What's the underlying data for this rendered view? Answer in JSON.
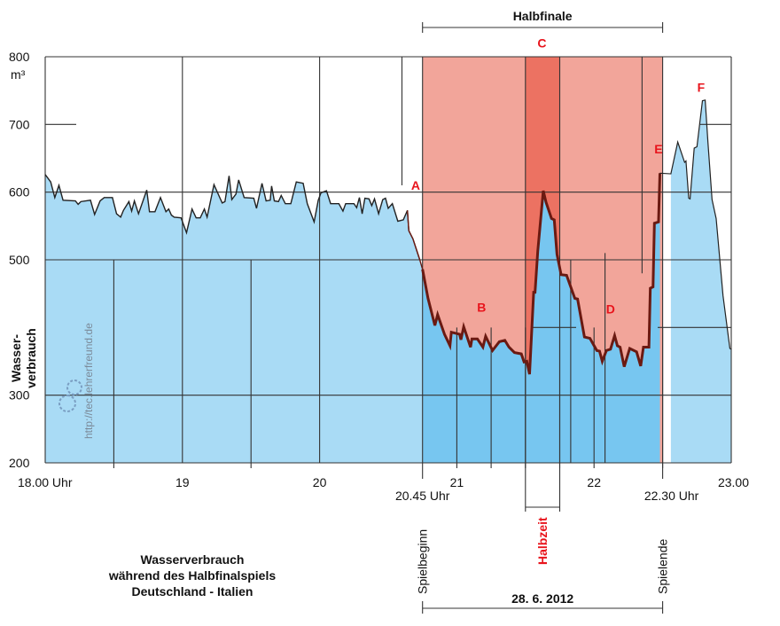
{
  "chart_data": {
    "type": "area",
    "title": [
      "Wasserverbrauch",
      "während des Halbfinalspiels",
      "Deutschland - Italien"
    ],
    "ylabel": [
      "Wasser-",
      "verbrauch"
    ],
    "yunit": "m³",
    "ylim": [
      200,
      800
    ],
    "xlim": [
      18,
      23
    ],
    "yticks": [
      200,
      300,
      500,
      600,
      700,
      800
    ],
    "xticks": [
      {
        "x": 18,
        "label": "18.00 Uhr"
      },
      {
        "x": 19,
        "label": "19"
      },
      {
        "x": 20,
        "label": "20"
      },
      {
        "x": 21,
        "label": "21"
      },
      {
        "x": 22,
        "label": "22"
      },
      {
        "x": 23,
        "label": "23.00"
      }
    ],
    "extra_xlabels": [
      {
        "x": 20.75,
        "label": "20.45 Uhr"
      },
      {
        "x": 22.5,
        "label": "22.30 Uhr"
      }
    ],
    "game": {
      "start": 20.75,
      "end": 22.5,
      "label": "Halbfinale",
      "start_label": "Spielbeginn",
      "end_label": "Spielende",
      "date": "28. 6. 2012"
    },
    "halftime": {
      "start": 21.5,
      "end": 21.75,
      "label": "Halbzeit"
    },
    "annotations": [
      {
        "label": "A",
        "x": 20.7,
        "y": 610
      },
      {
        "label": "B",
        "x": 21.18,
        "y": 430
      },
      {
        "label": "C",
        "x": 21.62,
        "y": 820
      },
      {
        "label": "D",
        "x": 22.12,
        "y": 427
      },
      {
        "label": "E",
        "x": 22.47,
        "y": 664
      },
      {
        "label": "F",
        "x": 22.78,
        "y": 755
      }
    ],
    "watermark": "http://tec.lehrerfreund.de",
    "colors": {
      "area_outside": "#a9dbf5",
      "area_game": "#77c6f0",
      "game_band": "#f2a59a",
      "halftime_band": "#ec7262",
      "line": "#222222",
      "game_line": "#6b1a12",
      "annotation": "#e8141c"
    },
    "series": [
      {
        "name": "Wasserverbrauch (m³)",
        "points": [
          [
            18.0,
            626
          ],
          [
            18.04,
            615
          ],
          [
            18.07,
            592
          ],
          [
            18.1,
            610
          ],
          [
            18.13,
            588
          ],
          [
            18.22,
            587
          ],
          [
            18.24,
            582
          ],
          [
            18.26,
            586
          ],
          [
            18.33,
            588
          ],
          [
            18.36,
            567
          ],
          [
            18.4,
            587
          ],
          [
            18.43,
            592
          ],
          [
            18.49,
            592
          ],
          [
            18.52,
            568
          ],
          [
            18.55,
            563
          ],
          [
            18.57,
            573
          ],
          [
            18.61,
            586
          ],
          [
            18.63,
            572
          ],
          [
            18.65,
            587
          ],
          [
            18.68,
            568
          ],
          [
            18.74,
            603
          ],
          [
            18.76,
            571
          ],
          [
            18.8,
            571
          ],
          [
            18.84,
            592
          ],
          [
            18.88,
            571
          ],
          [
            18.9,
            575
          ],
          [
            18.92,
            566
          ],
          [
            18.94,
            563
          ],
          [
            18.99,
            562
          ],
          [
            19.03,
            540
          ],
          [
            19.07,
            575
          ],
          [
            19.1,
            562
          ],
          [
            19.13,
            562
          ],
          [
            19.16,
            575
          ],
          [
            19.18,
            563
          ],
          [
            19.23,
            611
          ],
          [
            19.29,
            584
          ],
          [
            19.31,
            586
          ],
          [
            19.34,
            624
          ],
          [
            19.36,
            589
          ],
          [
            19.39,
            597
          ],
          [
            19.41,
            618
          ],
          [
            19.45,
            592
          ],
          [
            19.52,
            591
          ],
          [
            19.54,
            576
          ],
          [
            19.58,
            613
          ],
          [
            19.61,
            587
          ],
          [
            19.64,
            588
          ],
          [
            19.65,
            609
          ],
          [
            19.67,
            587
          ],
          [
            19.7,
            586
          ],
          [
            19.72,
            595
          ],
          [
            19.75,
            583
          ],
          [
            19.79,
            583
          ],
          [
            19.83,
            615
          ],
          [
            19.88,
            613
          ],
          [
            19.91,
            583
          ],
          [
            19.96,
            556
          ],
          [
            19.99,
            588
          ],
          [
            20.01,
            599
          ],
          [
            20.05,
            602
          ],
          [
            20.08,
            583
          ],
          [
            20.14,
            583
          ],
          [
            20.17,
            572
          ],
          [
            20.19,
            583
          ],
          [
            20.25,
            583
          ],
          [
            20.27,
            577
          ],
          [
            20.29,
            592
          ],
          [
            20.31,
            568
          ],
          [
            20.33,
            591
          ],
          [
            20.36,
            590
          ],
          [
            20.38,
            580
          ],
          [
            20.4,
            590
          ],
          [
            20.43,
            568
          ],
          [
            20.46,
            589
          ],
          [
            20.48,
            591
          ],
          [
            20.5,
            576
          ],
          [
            20.53,
            583
          ],
          [
            20.57,
            557
          ],
          [
            20.61,
            559
          ],
          [
            20.64,
            573
          ],
          [
            20.65,
            543
          ],
          [
            20.68,
            531
          ],
          [
            20.73,
            500
          ],
          [
            20.75,
            486
          ],
          [
            20.79,
            443
          ],
          [
            20.84,
            403
          ],
          [
            20.86,
            419
          ],
          [
            20.91,
            390
          ],
          [
            20.95,
            373
          ],
          [
            20.96,
            393
          ],
          [
            21.02,
            390
          ],
          [
            21.03,
            382
          ],
          [
            21.05,
            401
          ],
          [
            21.1,
            371
          ],
          [
            21.11,
            383
          ],
          [
            21.15,
            383
          ],
          [
            21.19,
            371
          ],
          [
            21.21,
            387
          ],
          [
            21.26,
            366
          ],
          [
            21.31,
            379
          ],
          [
            21.35,
            381
          ],
          [
            21.38,
            371
          ],
          [
            21.42,
            363
          ],
          [
            21.47,
            361
          ],
          [
            21.49,
            349
          ],
          [
            21.51,
            350
          ],
          [
            21.53,
            331
          ],
          [
            21.56,
            452
          ],
          [
            21.57,
            452
          ],
          [
            21.59,
            513
          ],
          [
            21.63,
            602
          ],
          [
            21.65,
            585
          ],
          [
            21.69,
            561
          ],
          [
            21.71,
            559
          ],
          [
            21.73,
            508
          ],
          [
            21.76,
            478
          ],
          [
            21.8,
            477
          ],
          [
            21.86,
            443
          ],
          [
            21.88,
            442
          ],
          [
            21.93,
            386
          ],
          [
            21.97,
            384
          ],
          [
            22.02,
            366
          ],
          [
            22.04,
            365
          ],
          [
            22.06,
            350
          ],
          [
            22.09,
            366
          ],
          [
            22.12,
            368
          ],
          [
            22.15,
            388
          ],
          [
            22.17,
            373
          ],
          [
            22.19,
            371
          ],
          [
            22.22,
            342
          ],
          [
            22.26,
            369
          ],
          [
            22.31,
            364
          ],
          [
            22.34,
            343
          ],
          [
            22.36,
            371
          ],
          [
            22.4,
            371
          ],
          [
            22.41,
            458
          ],
          [
            22.43,
            460
          ],
          [
            22.44,
            554
          ],
          [
            22.47,
            556
          ],
          [
            22.48,
            628
          ],
          [
            22.56,
            627
          ],
          [
            22.61,
            674
          ],
          [
            22.66,
            644
          ],
          [
            22.67,
            646
          ],
          [
            22.69,
            591
          ],
          [
            22.7,
            590
          ],
          [
            22.73,
            665
          ],
          [
            22.75,
            667
          ],
          [
            22.79,
            735
          ],
          [
            22.81,
            736
          ],
          [
            22.83,
            674
          ],
          [
            22.86,
            589
          ],
          [
            22.89,
            561
          ],
          [
            22.94,
            447
          ],
          [
            22.99,
            369
          ],
          [
            23.0,
            368
          ]
        ]
      }
    ]
  }
}
